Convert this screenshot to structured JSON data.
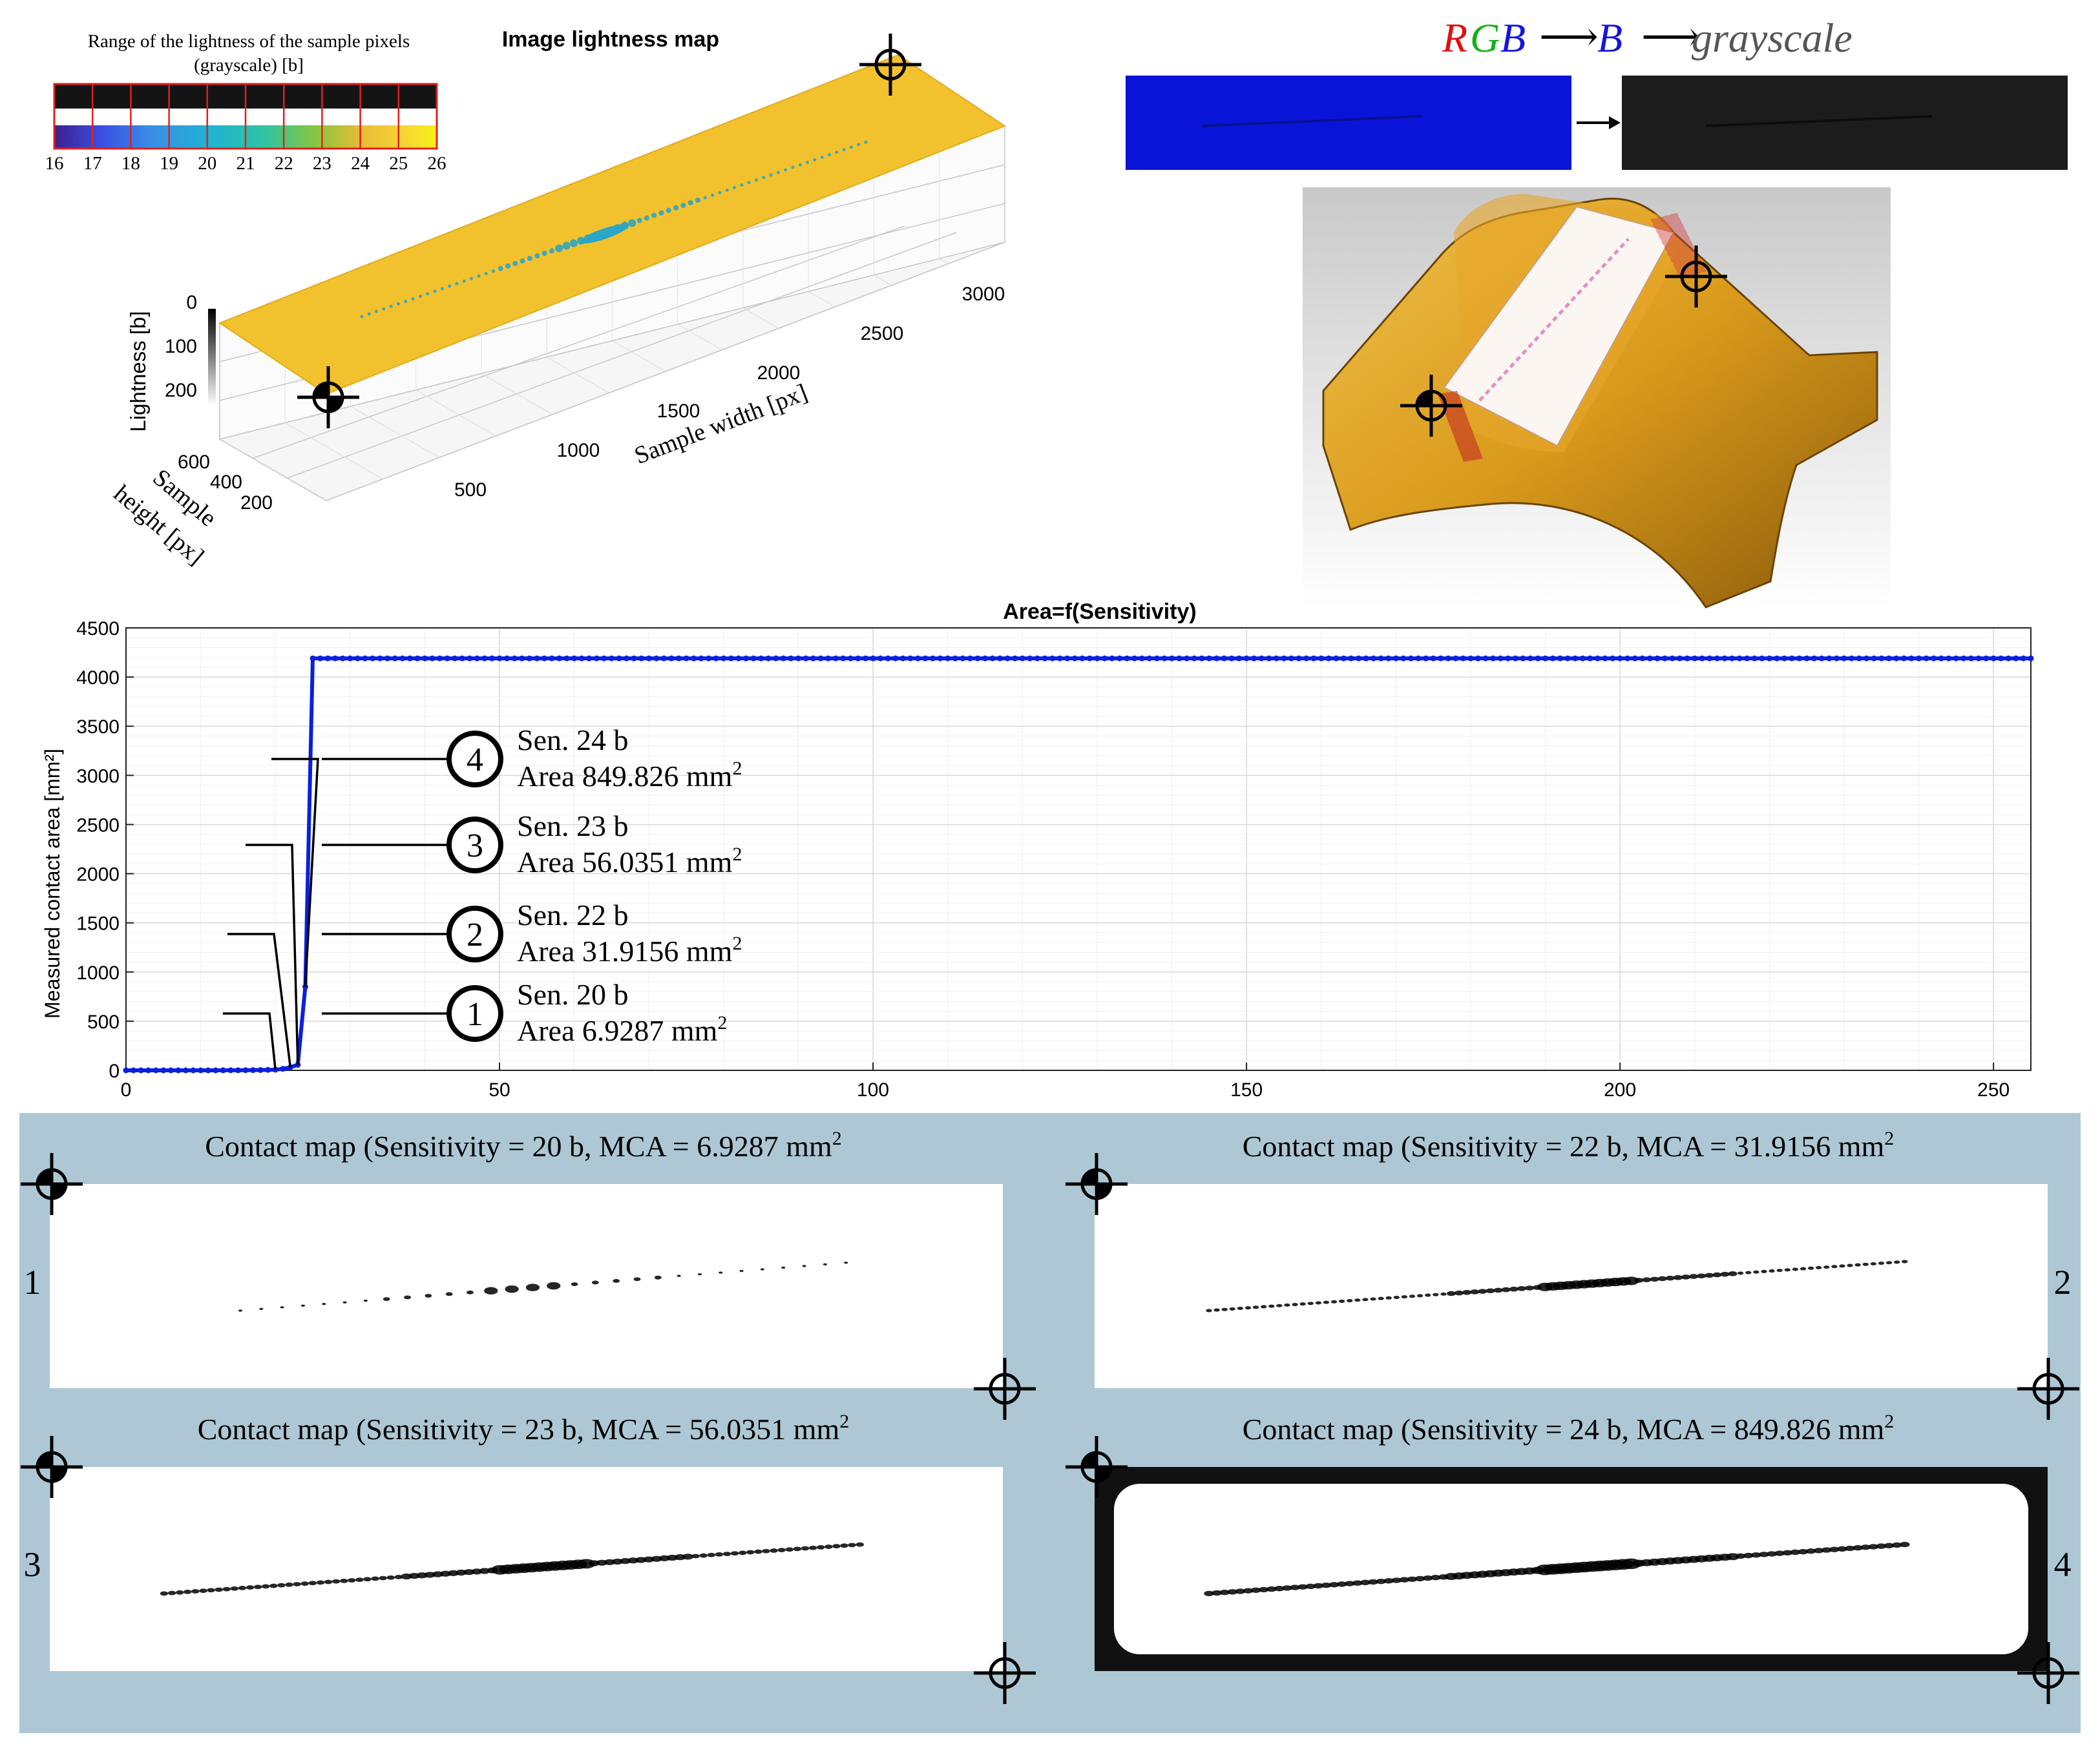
{
  "lightness_map": {
    "title": "Image lightness map",
    "legend_title_line1": "Range of the lightness of the sample pixels",
    "legend_title_line2": "(grayscale) [b]",
    "legend_ticks": [
      "16",
      "17",
      "18",
      "19",
      "20",
      "21",
      "22",
      "23",
      "24",
      "25",
      "26"
    ],
    "colors": {
      "surface": "#f2c12e",
      "trace": "#2aa6c6"
    },
    "z_label": "Lightness [b]",
    "z_ticks": [
      "0",
      "100",
      "200"
    ],
    "x_label": "Sample width [px]",
    "x_ticks": [
      "500",
      "1000",
      "1500",
      "2000",
      "2500",
      "3000"
    ],
    "y_label_line1": "Sample",
    "y_label_line2": "height [px]",
    "y_ticks": [
      "200",
      "400",
      "600"
    ]
  },
  "pipeline": {
    "r": "R",
    "g": "G",
    "b": "B",
    "arrow": "⟶",
    "b2": "B",
    "gray": "grayscale",
    "colors": {
      "blue_strip": "#0a14d8",
      "gray_strip": "#1c1c1c",
      "gear": "#d99a1c"
    }
  },
  "chart_data": {
    "type": "line",
    "title": "Area=f(Sensitivity)",
    "xlabel": "",
    "ylabel": "Measured contact area [mm²]",
    "xlim": [
      0,
      255
    ],
    "ylim": [
      0,
      4500
    ],
    "x_ticks": [
      0,
      50,
      100,
      150,
      200,
      250
    ],
    "y_ticks": [
      0,
      500,
      1000,
      1500,
      2000,
      2500,
      3000,
      3500,
      4000,
      4500
    ],
    "grid": true,
    "series": [
      {
        "color": "#0a1fe0",
        "x": [
          0,
          5,
          10,
          15,
          18,
          20,
          21,
          22,
          23,
          24,
          25,
          255
        ],
        "y": [
          0,
          0,
          0,
          1,
          3,
          6.9287,
          15,
          31.9156,
          56.0351,
          849.826,
          4190,
          4190
        ]
      }
    ],
    "annotations": [
      {
        "num": "4",
        "line1": "Sen. 24 b",
        "line2": "Area 849.826 mm",
        "sup": "2"
      },
      {
        "num": "3",
        "line1": "Sen. 23 b",
        "line2": "Area 56.0351 mm",
        "sup": "2"
      },
      {
        "num": "2",
        "line1": "Sen. 22 b",
        "line2": "Area 31.9156 mm",
        "sup": "2"
      },
      {
        "num": "1",
        "line1": "Sen. 20 b",
        "line2": "Area 6.9287 mm",
        "sup": "2"
      }
    ]
  },
  "contact_maps": {
    "background": "#adc8d4",
    "panels": [
      {
        "title": "Contact map (Sensitivity = 20 b, MCA = 6.9287 mm",
        "sup": "2",
        "num": "1"
      },
      {
        "title": "Contact map (Sensitivity = 22 b, MCA = 31.9156 mm",
        "sup": "2",
        "num": "2"
      },
      {
        "title": "Contact map (Sensitivity = 23 b, MCA = 56.0351 mm",
        "sup": "2",
        "num": "3"
      },
      {
        "title": "Contact map (Sensitivity = 24 b, MCA = 849.826 mm",
        "sup": "2",
        "num": "4"
      }
    ]
  }
}
